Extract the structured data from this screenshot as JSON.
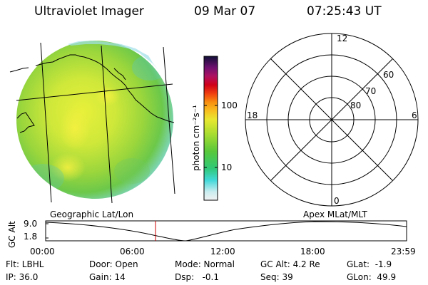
{
  "header": {
    "instrument": "Ultraviolet Imager",
    "date": "09 Mar 07",
    "time": "07:25:43 UT"
  },
  "colorbar": {
    "unit_label": "photon cm⁻²s⁻¹",
    "tick_100": "100",
    "tick_10": "10"
  },
  "polar": {
    "mlt_labels": {
      "top": "12",
      "bottom": "0",
      "left": "18",
      "right": "6"
    },
    "lat_labels": [
      "60",
      "70",
      "80"
    ]
  },
  "projection": {
    "left": "Geographic Lat/Lon",
    "right": "Apex  MLat/MLT"
  },
  "altitude_plot": {
    "axis_label": "GC Alt",
    "y_top": "9.0",
    "y_bottom": "1.8",
    "time_ticks": [
      "00:00",
      "06:00",
      "12:00",
      "18:00",
      "23:59"
    ],
    "colors": {
      "curve": "#000000",
      "marker": "#cc0000"
    }
  },
  "info": {
    "row1": {
      "filter": "Flt: LBHL",
      "door": "Door: Open",
      "mode": "Mode: Normal",
      "gc_alt": "GC Alt: 4.2 Re",
      "glat": "GLat:  -1.9"
    },
    "row2": {
      "ip": "IP: 36.0",
      "gain": "Gain: 14",
      "dsp": "Dsp:   -0.1",
      "seq": "Seq: 39",
      "glon": "GLon:  49.9"
    }
  }
}
